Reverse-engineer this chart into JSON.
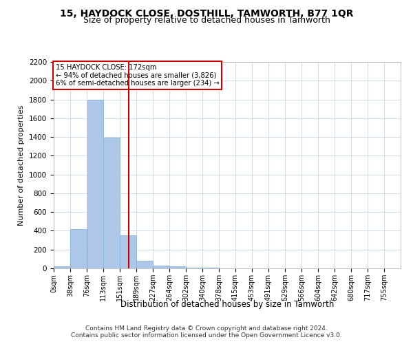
{
  "title": "15, HAYDOCK CLOSE, DOSTHILL, TAMWORTH, B77 1QR",
  "subtitle": "Size of property relative to detached houses in Tamworth",
  "xlabel": "Distribution of detached houses by size in Tamworth",
  "ylabel": "Number of detached properties",
  "footnote1": "Contains HM Land Registry data © Crown copyright and database right 2024.",
  "footnote2": "Contains public sector information licensed under the Open Government Licence v3.0.",
  "bin_labels": [
    "0sqm",
    "38sqm",
    "76sqm",
    "113sqm",
    "151sqm",
    "189sqm",
    "227sqm",
    "264sqm",
    "302sqm",
    "340sqm",
    "378sqm",
    "415sqm",
    "453sqm",
    "491sqm",
    "529sqm",
    "566sqm",
    "604sqm",
    "642sqm",
    "680sqm",
    "717sqm",
    "755sqm"
  ],
  "bin_edges": [
    0,
    38,
    76,
    113,
    151,
    189,
    227,
    264,
    302,
    340,
    378,
    415,
    453,
    491,
    529,
    566,
    604,
    642,
    680,
    717,
    755
  ],
  "bar_heights": [
    20,
    420,
    1800,
    1390,
    350,
    80,
    30,
    20,
    10,
    5,
    2,
    1,
    0,
    0,
    0,
    0,
    0,
    0,
    0,
    0
  ],
  "bar_color": "#aec6e8",
  "bar_edgecolor": "#7aafd4",
  "property_size": 172,
  "red_line_color": "#cc0000",
  "annotation_text": "15 HAYDOCK CLOSE: 172sqm\n← 94% of detached houses are smaller (3,826)\n6% of semi-detached houses are larger (234) →",
  "annotation_box_color": "#cc0000",
  "ylim": [
    0,
    2200
  ],
  "yticks": [
    0,
    200,
    400,
    600,
    800,
    1000,
    1200,
    1400,
    1600,
    1800,
    2000,
    2200
  ],
  "background_color": "#ffffff",
  "grid_color": "#c8d8e8",
  "title_fontsize": 10,
  "subtitle_fontsize": 9,
  "footnote_fontsize": 6.5
}
